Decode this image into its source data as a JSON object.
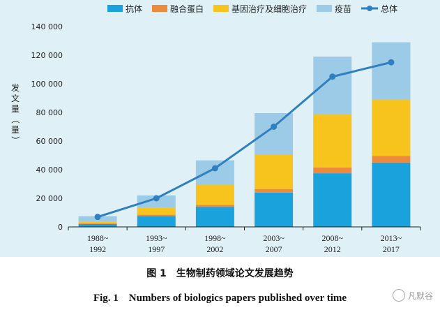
{
  "chart_data": {
    "type": "bar",
    "stacked": true,
    "categories": [
      [
        "1988~",
        "1992"
      ],
      [
        "1993~",
        "1997"
      ],
      [
        "1998~",
        "2002"
      ],
      [
        "2003~",
        "2007"
      ],
      [
        "2008~",
        "2012"
      ],
      [
        "2013~",
        "2017"
      ]
    ],
    "series": [
      {
        "name": "抗体",
        "color": "#1aa2dc",
        "values": [
          2000,
          7500,
          14000,
          24000,
          37500,
          45000
        ]
      },
      {
        "name": "融合蛋白",
        "color": "#ee8a3c",
        "values": [
          500,
          1000,
          1500,
          2500,
          4000,
          4500
        ]
      },
      {
        "name": "基因治疗及细胞治疗",
        "color": "#f7c31d",
        "values": [
          1000,
          5000,
          14000,
          24000,
          37000,
          39500
        ]
      },
      {
        "name": "疫苗",
        "color": "#9ccbe8",
        "values": [
          4000,
          8500,
          17000,
          29000,
          40500,
          40000
        ]
      }
    ],
    "line": {
      "name": "总体",
      "color": "#2f7fc1",
      "values": [
        7000,
        20000,
        41000,
        70000,
        105000,
        115000
      ]
    },
    "ylabel": "发文量（量）",
    "ylim": [
      0,
      140000
    ],
    "yticks": [
      0,
      20000,
      40000,
      60000,
      80000,
      100000,
      120000,
      140000
    ],
    "ytick_labels": [
      "0",
      "20 000",
      "40 000",
      "60 000",
      "80 000",
      "100 000",
      "120 000",
      "140 000"
    ],
    "grid": false,
    "legend_position": "top"
  },
  "caption_cn": "图 1　生物制药领域论文发展趋势",
  "caption_en": "Fig. 1　Numbers of biologics papers published over time",
  "watermark": "凡默谷"
}
